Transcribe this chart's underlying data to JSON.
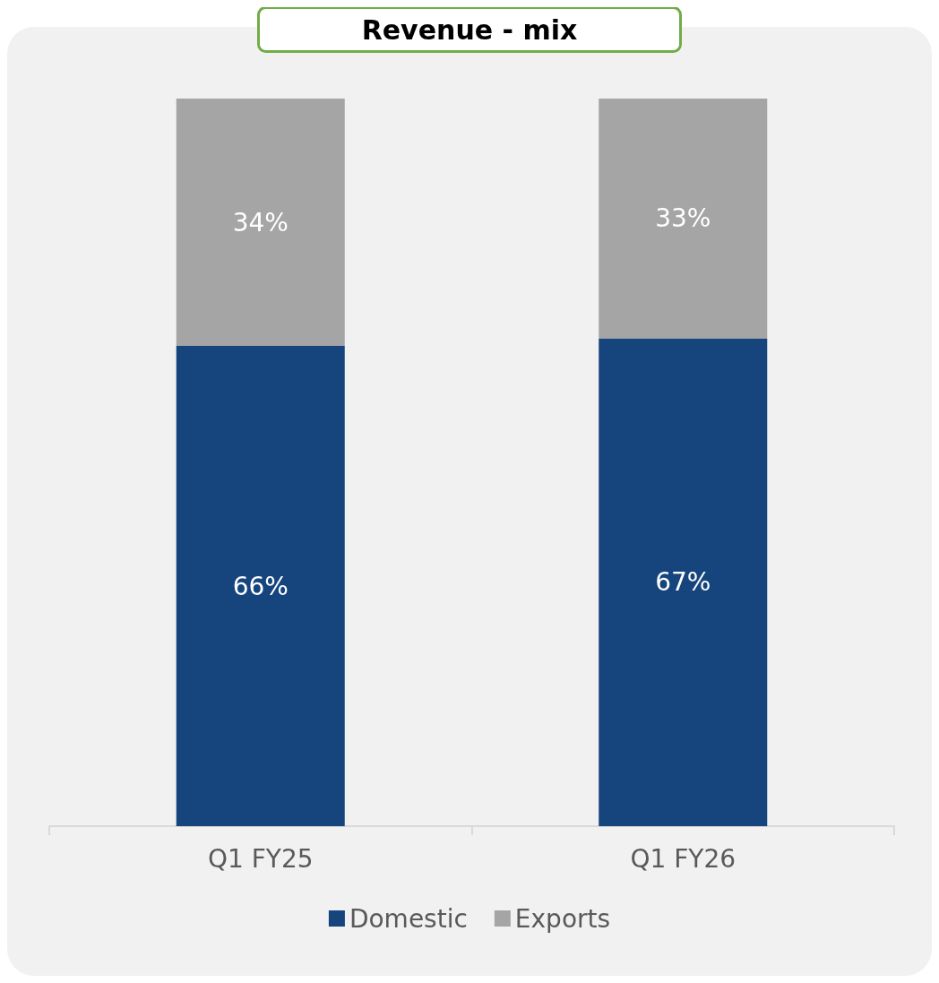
{
  "chart_data": {
    "type": "bar",
    "title": "Revenue - mix",
    "categories": [
      "Q1 FY25",
      "Q1 FY26"
    ],
    "stacked": true,
    "legend": "bottom",
    "series": [
      {
        "name": "Domestic",
        "color": "#15457c",
        "values": [
          66,
          67
        ],
        "value_labels": [
          "66%",
          "67%"
        ]
      },
      {
        "name": "Exports",
        "color": "#a5a5a5",
        "values": [
          34,
          33
        ],
        "value_labels": [
          "34%",
          "33%"
        ]
      }
    ]
  }
}
